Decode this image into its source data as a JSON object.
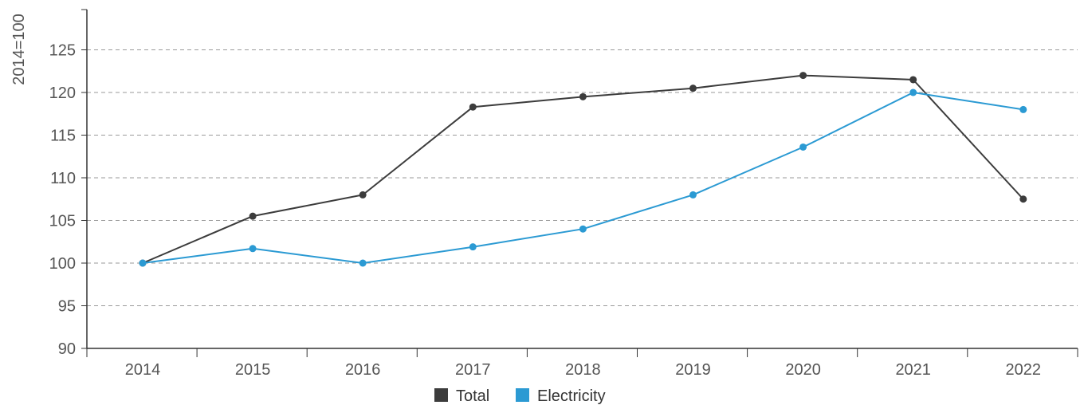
{
  "chart_data": {
    "type": "line",
    "title": "",
    "ylabel": "2014=100",
    "xlabel": "",
    "x": [
      "2014",
      "2015",
      "2016",
      "2017",
      "2018",
      "2019",
      "2020",
      "2021",
      "2022"
    ],
    "ylim": [
      90,
      130
    ],
    "yticks": [
      90,
      95,
      100,
      105,
      110,
      115,
      120,
      125
    ],
    "grid": "horizontal dashed",
    "legend": "bottom-center",
    "series": [
      {
        "name": "Total",
        "color": "#3c3c3c",
        "values": [
          100,
          105.5,
          108,
          118.3,
          119.5,
          120.5,
          122,
          121.5,
          107.5
        ]
      },
      {
        "name": "Electricity",
        "color": "#2b9ad3",
        "values": [
          100,
          101.7,
          100,
          101.9,
          104,
          108,
          113.6,
          120,
          118
        ]
      }
    ]
  }
}
